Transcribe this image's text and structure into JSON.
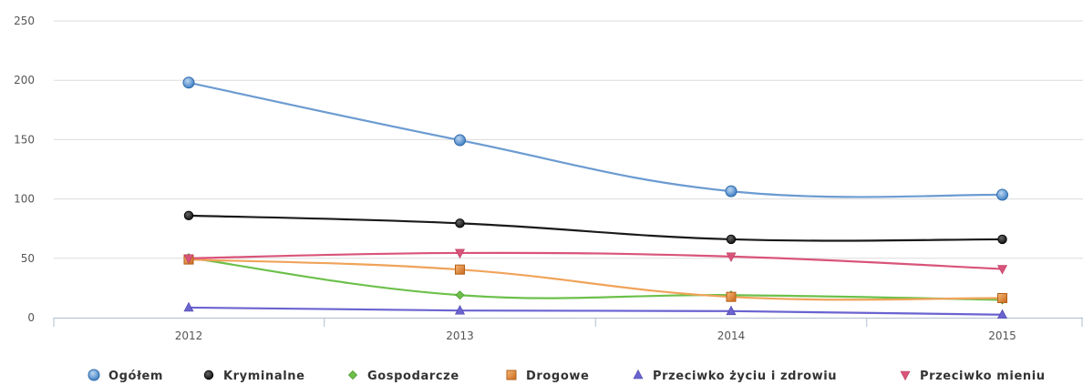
{
  "chart_data": {
    "type": "line",
    "categories": [
      "2012",
      "2013",
      "2014",
      "2015"
    ],
    "ylim": [
      0,
      250
    ],
    "yticks": [
      0,
      50,
      100,
      150,
      200,
      250
    ],
    "grid": true,
    "legend_position": "bottom",
    "series": [
      {
        "name": "Ogółem",
        "color": "#6b9bd1",
        "marker": "circle",
        "values": [
          198,
          149.5,
          106.5,
          103.5
        ]
      },
      {
        "name": "Kryminalne",
        "color": "#1a1a1a",
        "marker": "dot",
        "values": [
          86,
          79.5,
          66,
          66
        ]
      },
      {
        "name": "Gospodarcze",
        "color": "#6cc04a",
        "marker": "diamond",
        "values": [
          50.5,
          19,
          19,
          15
        ]
      },
      {
        "name": "Drogowe",
        "color": "#f0a35a",
        "marker": "square",
        "values": [
          49,
          40.5,
          17.5,
          16.5
        ]
      },
      {
        "name": "Przeciwko życiu i zdrowiu",
        "color": "#6a63d0",
        "marker": "triangle",
        "values": [
          8.5,
          6,
          5.5,
          2.5
        ]
      },
      {
        "name": "Przeciwko mieniu",
        "color": "#d9547a",
        "marker": "triangle-down",
        "values": [
          50,
          54.5,
          51.5,
          41
        ]
      }
    ]
  }
}
